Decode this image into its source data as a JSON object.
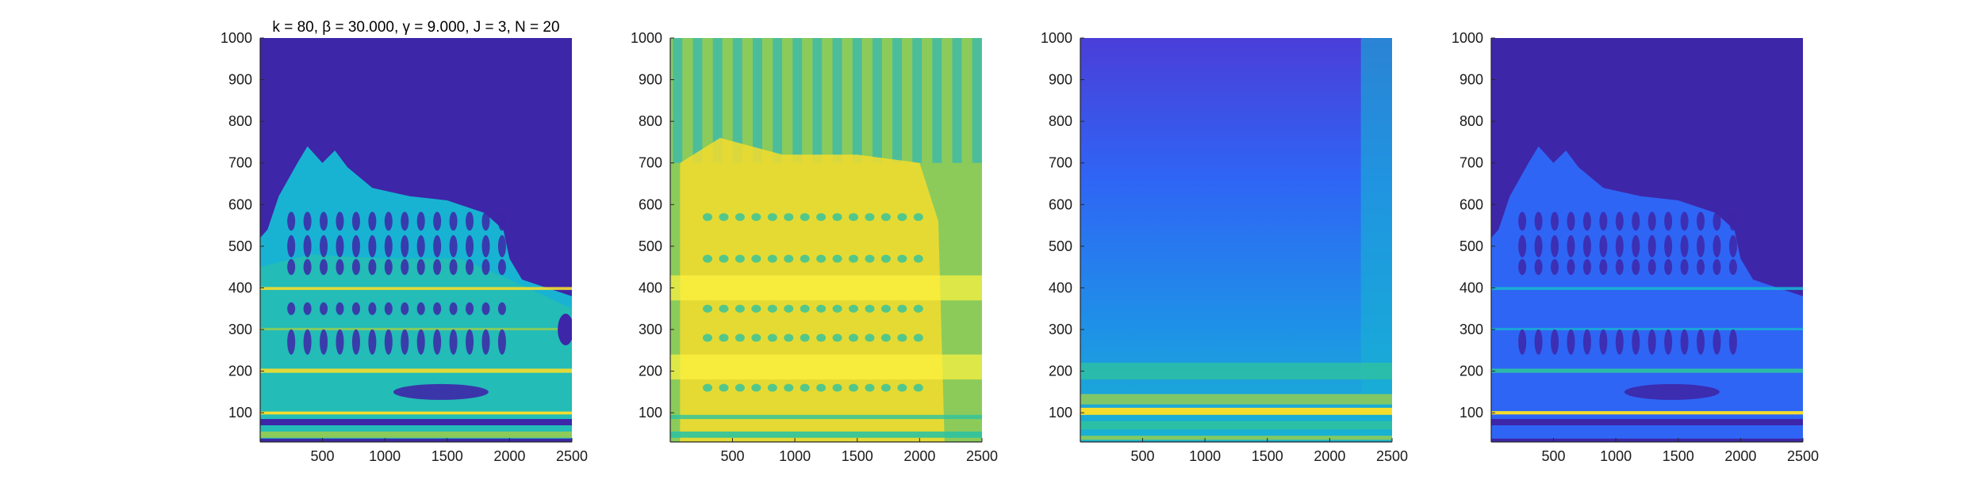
{
  "chart_data": [
    {
      "type": "heatmap",
      "title": "k = 80, β = 30.000, γ = 9.000, J = 3, N = 20",
      "xlim": [
        1,
        2500
      ],
      "ylim": [
        30,
        1000
      ],
      "xticks": [
        500,
        1000,
        1500,
        2000,
        2500
      ],
      "yticks": [
        100,
        200,
        300,
        400,
        500,
        600,
        700,
        800,
        900,
        1000
      ],
      "colormap": "parula",
      "grid": false
    },
    {
      "type": "heatmap",
      "title": "",
      "xlim": [
        1,
        2500
      ],
      "ylim": [
        30,
        1000
      ],
      "xticks": [
        500,
        1000,
        1500,
        2000,
        2500
      ],
      "yticks": [
        100,
        200,
        300,
        400,
        500,
        600,
        700,
        800,
        900,
        1000
      ],
      "colormap": "parula",
      "grid": false
    },
    {
      "type": "heatmap",
      "title": "",
      "xlim": [
        1,
        2500
      ],
      "ylim": [
        30,
        1000
      ],
      "xticks": [
        500,
        1000,
        1500,
        2000,
        2500
      ],
      "yticks": [
        100,
        200,
        300,
        400,
        500,
        600,
        700,
        800,
        900,
        1000
      ],
      "colormap": "parula",
      "grid": false
    },
    {
      "type": "heatmap",
      "title": "",
      "xlim": [
        1,
        2500
      ],
      "ylim": [
        30,
        1000
      ],
      "xticks": [
        500,
        1000,
        1500,
        2000,
        2500
      ],
      "yticks": [
        100,
        200,
        300,
        400,
        500,
        600,
        700,
        800,
        900,
        1000
      ],
      "colormap": "parula",
      "grid": false
    }
  ],
  "colors": {
    "dark": "#3e26a8",
    "blue": "#2f65f5",
    "cyan": "#18b3d2",
    "teal": "#2ec2a0",
    "green": "#8ccb5a",
    "yellow": "#f5dd2d",
    "bright": "#fff240"
  }
}
